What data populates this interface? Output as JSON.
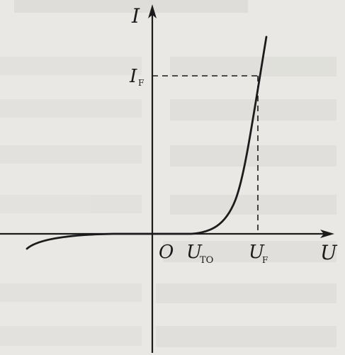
{
  "diagram": {
    "labels": {
      "y_axis": "I",
      "x_axis": "U",
      "origin": "O",
      "if_main": "I",
      "if_sub": "F",
      "uto_main": "U",
      "uto_sub": "TO",
      "uf_main": "U",
      "uf_sub": "F"
    },
    "colors": {
      "background": "#e9e8e4",
      "ink": "#1b1b1b",
      "show_through": "#c9c9c6"
    }
  }
}
